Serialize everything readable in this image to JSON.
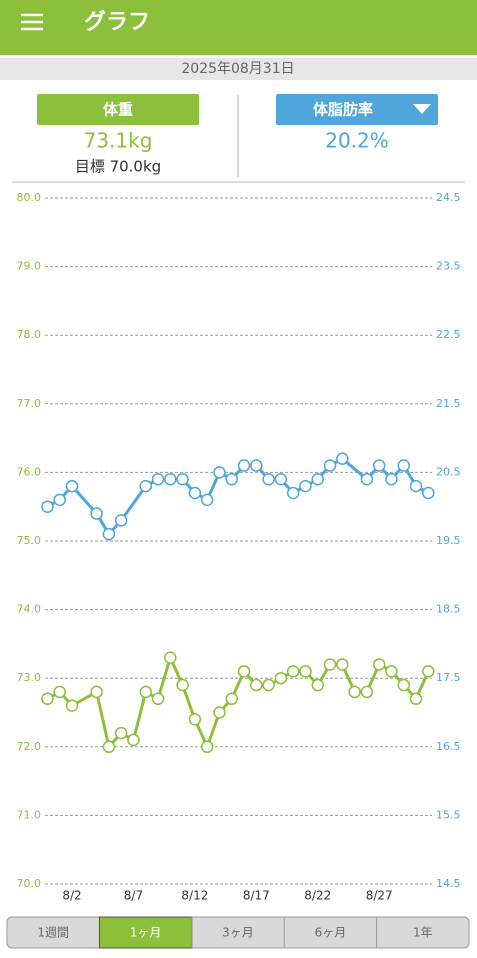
{
  "header": {
    "title": "グラフ"
  },
  "date": "2025年08月31日",
  "summary": {
    "weight_label": "体重",
    "weight_value": "73.1kg",
    "goal": "目標 70.0kg",
    "fat_label": "体脂肪率",
    "fat_value": "20.2%"
  },
  "tabs": [
    "1週間",
    "1ヶ月",
    "3ヶ月",
    "6ヶ月",
    "1年"
  ],
  "selected_tab": 1,
  "chart_data": {
    "type": "line",
    "xlim": [
      -0.2,
      31.3
    ],
    "xticks": [
      {
        "value": 2,
        "label": "8/2"
      },
      {
        "value": 7,
        "label": "8/7"
      },
      {
        "value": 12,
        "label": "8/12"
      },
      {
        "value": 17,
        "label": "8/17"
      },
      {
        "value": 22,
        "label": "8/22"
      },
      {
        "value": 27,
        "label": "8/27"
      }
    ],
    "ylim": [
      70,
      80
    ],
    "yticks": [
      {
        "value": 70,
        "label": "70.0"
      },
      {
        "value": 71,
        "label": "71.0"
      },
      {
        "value": 72,
        "label": "72.0"
      },
      {
        "value": 73,
        "label": "73.0"
      },
      {
        "value": 74,
        "label": "74.0"
      },
      {
        "value": 75,
        "label": "75.0"
      },
      {
        "value": 76,
        "label": "76.0"
      },
      {
        "value": 77,
        "label": "77.0"
      },
      {
        "value": 78,
        "label": "78.0"
      },
      {
        "value": 79,
        "label": "79.0"
      },
      {
        "value": 80,
        "label": "80.0"
      }
    ],
    "y2lim": [
      14.5,
      24.5
    ],
    "y2ticks": [
      14.5,
      15.5,
      16.5,
      17.5,
      18.5,
      19.5,
      20.5,
      21.5,
      22.5,
      23.5,
      24.5
    ],
    "grid": true,
    "series": [
      {
        "color": "#8cbf3a",
        "x": [
          0,
          1,
          2,
          4,
          5,
          6,
          7,
          8,
          9,
          10,
          11,
          12,
          13,
          14,
          15,
          16,
          17,
          18,
          19,
          20,
          21,
          22,
          23,
          24,
          25,
          26,
          27,
          28,
          29,
          30,
          31
        ],
        "values": [
          72.7,
          72.8,
          72.6,
          72.8,
          72.0,
          72.2,
          72.1,
          72.8,
          72.7,
          73.3,
          72.9,
          72.4,
          72.0,
          72.5,
          72.7,
          73.1,
          72.9,
          72.9,
          73.0,
          73.1,
          73.1,
          72.9,
          73.2,
          73.2,
          72.8,
          72.8,
          73.2,
          73.1,
          72.9,
          72.7,
          73.1
        ]
      },
      {
        "color": "#4ea6da",
        "axis": "y2",
        "x": [
          0,
          1,
          2,
          4,
          5,
          6,
          8,
          9,
          10,
          11,
          12,
          13,
          14,
          15,
          16,
          17,
          18,
          19,
          20,
          21,
          22,
          23,
          24,
          26,
          27,
          28,
          29,
          30,
          31
        ],
        "values": [
          20.0,
          20.1,
          20.3,
          19.9,
          19.6,
          19.8,
          20.3,
          20.4,
          20.4,
          20.4,
          20.2,
          20.1,
          20.5,
          20.4,
          20.6,
          20.6,
          20.4,
          20.4,
          20.2,
          20.3,
          20.4,
          20.6,
          20.7,
          20.4,
          20.6,
          20.4,
          20.6,
          20.3,
          20.2
        ]
      }
    ]
  }
}
